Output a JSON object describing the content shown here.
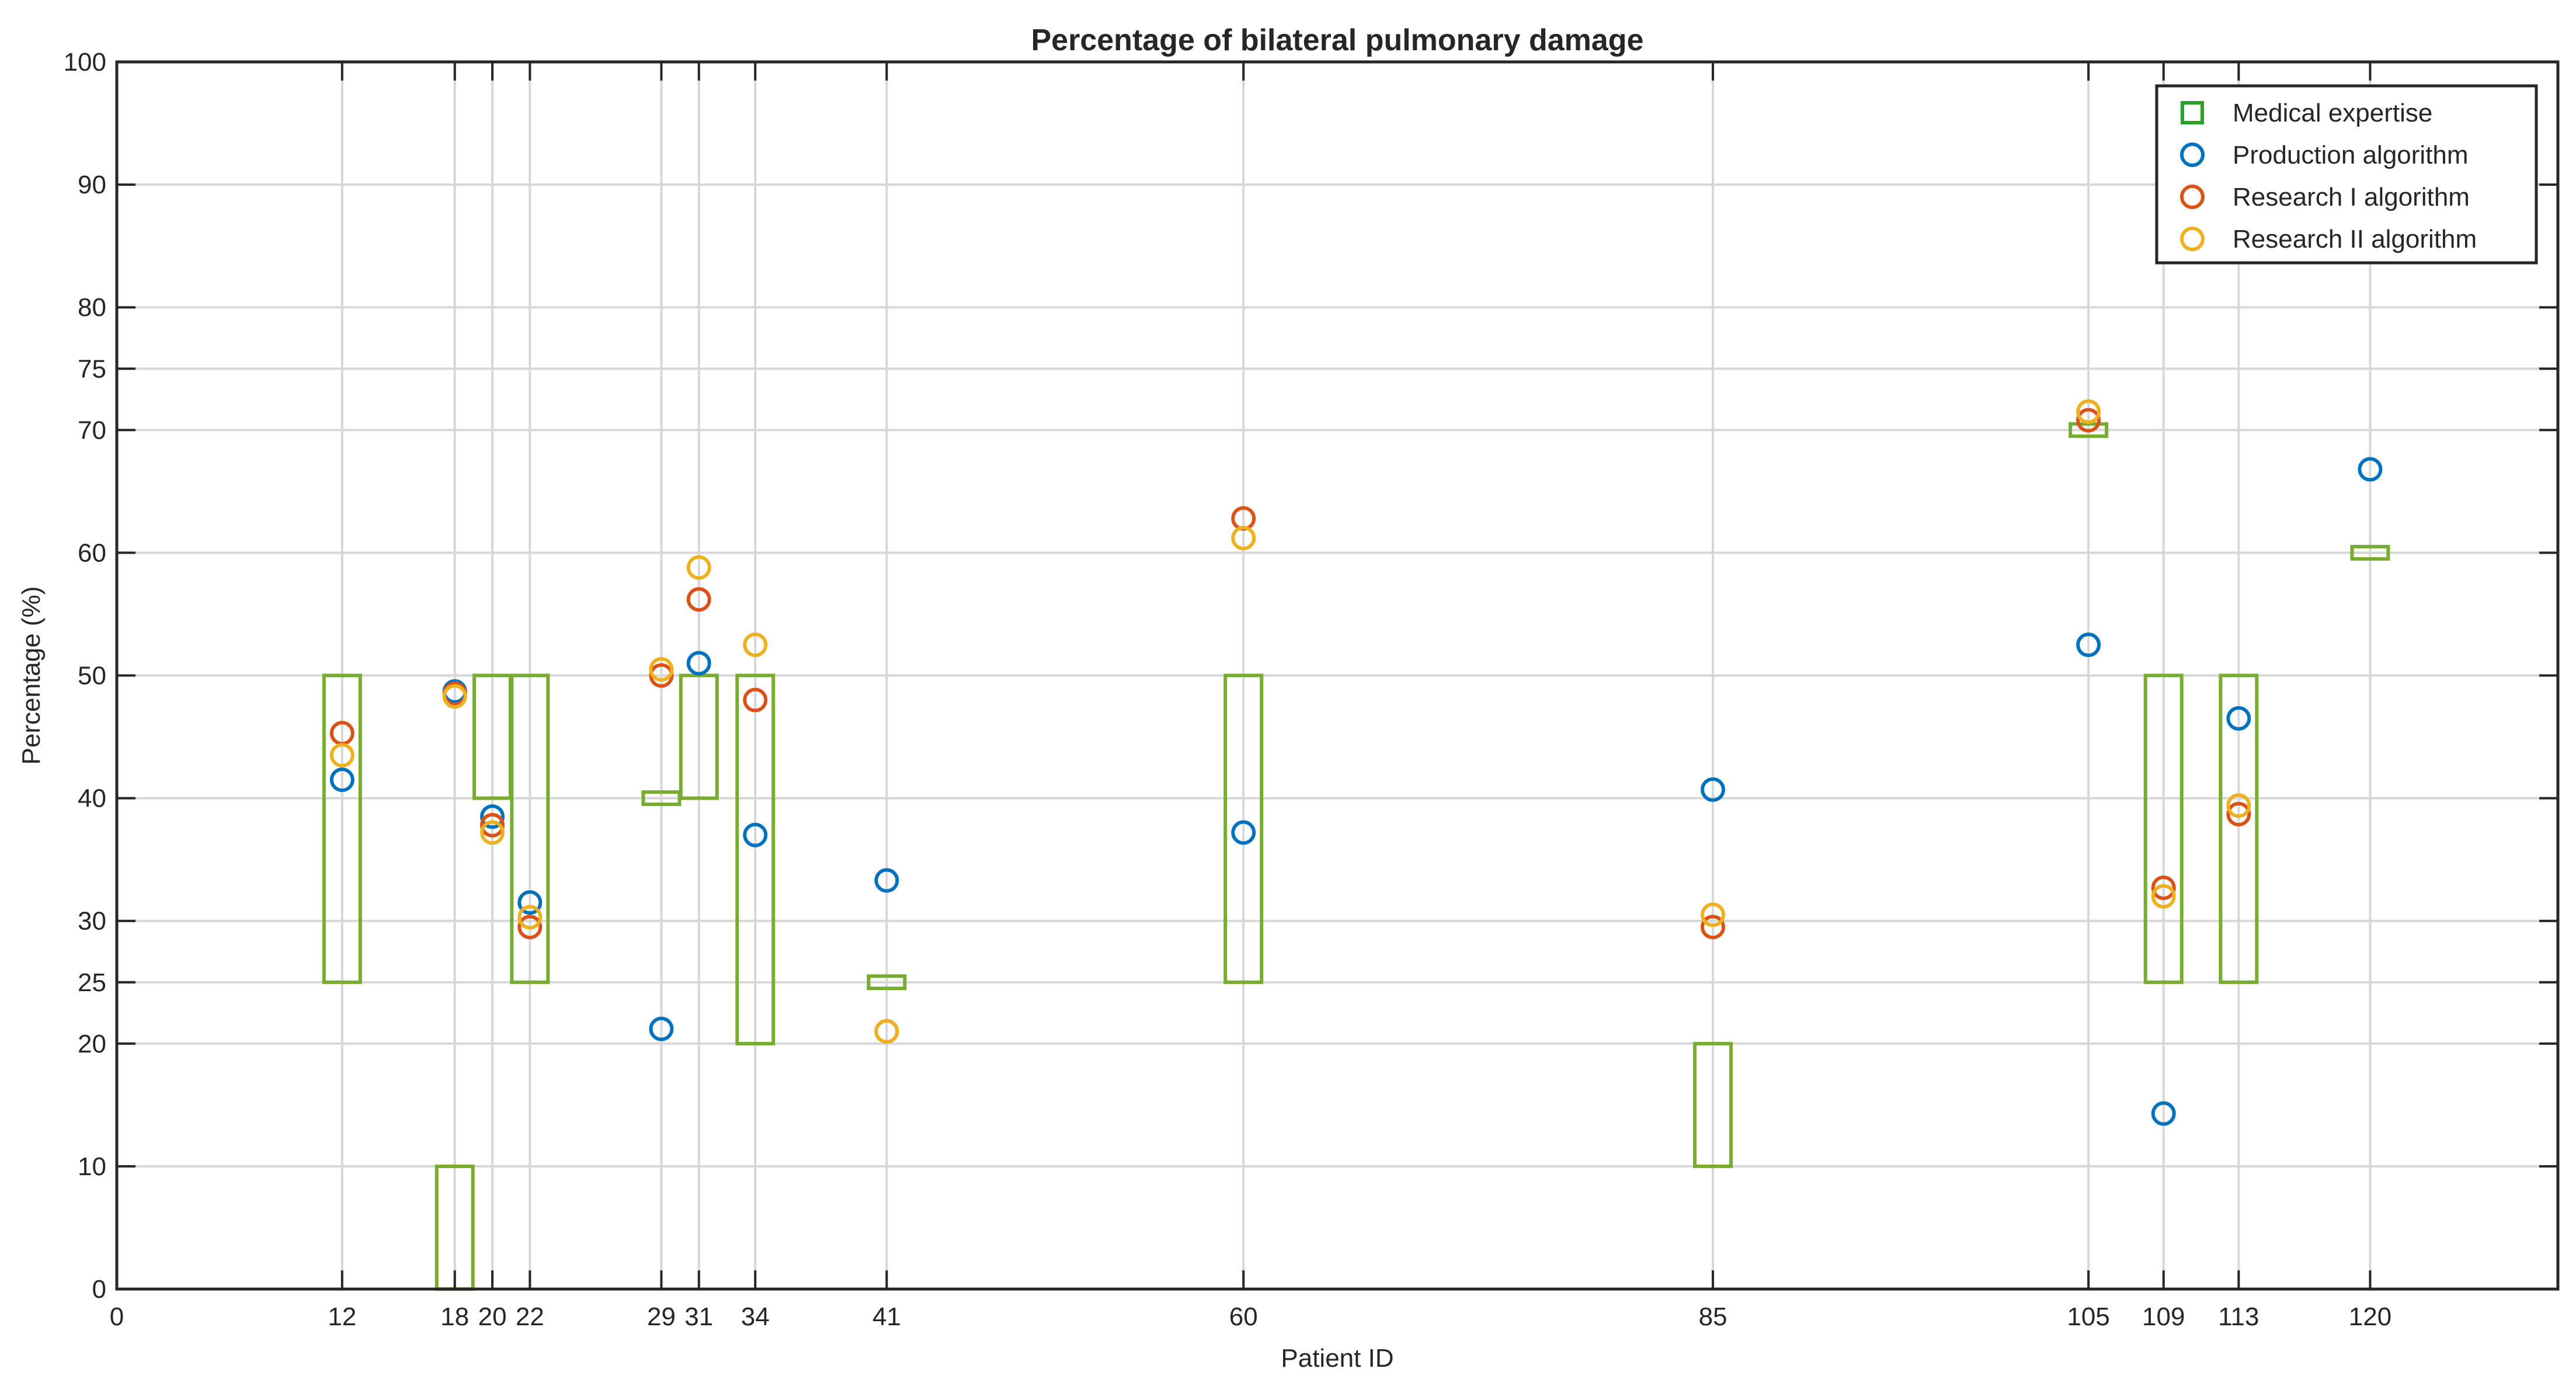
{
  "chart_data": {
    "type": "scatter",
    "title": "Percentage of bilateral pulmonary damage",
    "xlabel": "Patient ID",
    "ylabel": "Percentage (%)",
    "xlim": [
      0,
      130
    ],
    "ylim": [
      0,
      100
    ],
    "grid": true,
    "legend_position": "top-right",
    "x_ticks": [
      0,
      12,
      18,
      20,
      22,
      29,
      31,
      34,
      41,
      60,
      85,
      105,
      109,
      113,
      120
    ],
    "y_ticks": [
      0,
      10,
      20,
      25,
      30,
      40,
      50,
      60,
      70,
      75,
      80,
      90,
      100
    ],
    "vertical_gridlines": [
      12,
      18,
      20,
      22,
      29,
      31,
      34,
      41,
      60,
      85,
      105,
      109,
      113,
      120
    ],
    "colors": {
      "medical": "#77AC30",
      "medical_legend": "#2CA02C",
      "production": "#0072BD",
      "research1": "#D95319",
      "research2": "#EDB120"
    },
    "medical_expertise": [
      {
        "patient": 12,
        "low": 25,
        "high": 50
      },
      {
        "patient": 18,
        "low": 0,
        "high": 10
      },
      {
        "patient": 20,
        "low": 40,
        "high": 50
      },
      {
        "patient": 22,
        "low": 25,
        "high": 50
      },
      {
        "patient": 29,
        "low": 39.5,
        "high": 40.5
      },
      {
        "patient": 31,
        "low": 40,
        "high": 50
      },
      {
        "patient": 34,
        "low": 20,
        "high": 50
      },
      {
        "patient": 41,
        "low": 24.5,
        "high": 25.5
      },
      {
        "patient": 60,
        "low": 25,
        "high": 50
      },
      {
        "patient": 85,
        "low": 10,
        "high": 20
      },
      {
        "patient": 105,
        "low": 69.5,
        "high": 70.5
      },
      {
        "patient": 109,
        "low": 25,
        "high": 50
      },
      {
        "patient": 113,
        "low": 25,
        "high": 50
      },
      {
        "patient": 120,
        "low": 59.5,
        "high": 60.5
      }
    ],
    "series": [
      {
        "name": "Production algorithm",
        "color_key": "production",
        "points": [
          [
            12,
            41.5
          ],
          [
            18,
            48.7
          ],
          [
            20,
            38.5
          ],
          [
            22,
            31.5
          ],
          [
            29,
            21.2
          ],
          [
            31,
            51
          ],
          [
            34,
            37
          ],
          [
            41,
            33.3
          ],
          [
            60,
            37.2
          ],
          [
            85,
            40.7
          ],
          [
            105,
            52.5
          ],
          [
            109,
            14.3
          ],
          [
            113,
            46.5
          ],
          [
            120,
            66.8
          ]
        ]
      },
      {
        "name": "Research I algorithm",
        "color_key": "research1",
        "points": [
          [
            12,
            45.3
          ],
          [
            18,
            48.5
          ],
          [
            20,
            37.8
          ],
          [
            22,
            29.5
          ],
          [
            29,
            50
          ],
          [
            31,
            56.2
          ],
          [
            34,
            48
          ],
          [
            41,
            21
          ],
          [
            60,
            62.8
          ],
          [
            85,
            29.5
          ],
          [
            105,
            70.8
          ],
          [
            109,
            32.7
          ],
          [
            113,
            38.7
          ]
        ]
      },
      {
        "name": "Research II algorithm",
        "color_key": "research2",
        "points": [
          [
            12,
            43.5
          ],
          [
            18,
            48.3
          ],
          [
            20,
            37.2
          ],
          [
            22,
            30.3
          ],
          [
            29,
            50.5
          ],
          [
            31,
            58.8
          ],
          [
            34,
            52.5
          ],
          [
            41,
            21
          ],
          [
            60,
            61.2
          ],
          [
            85,
            30.5
          ],
          [
            105,
            71.5
          ],
          [
            109,
            32
          ],
          [
            113,
            39.4
          ]
        ]
      }
    ],
    "legend": [
      {
        "label": "Medical expertise",
        "marker": "square",
        "color_key": "medical_legend"
      },
      {
        "label": "Production algorithm",
        "marker": "circle",
        "color_key": "production"
      },
      {
        "label": "Research I algorithm",
        "marker": "circle",
        "color_key": "research1"
      },
      {
        "label": "Research II algorithm",
        "marker": "circle",
        "color_key": "research2"
      }
    ]
  }
}
